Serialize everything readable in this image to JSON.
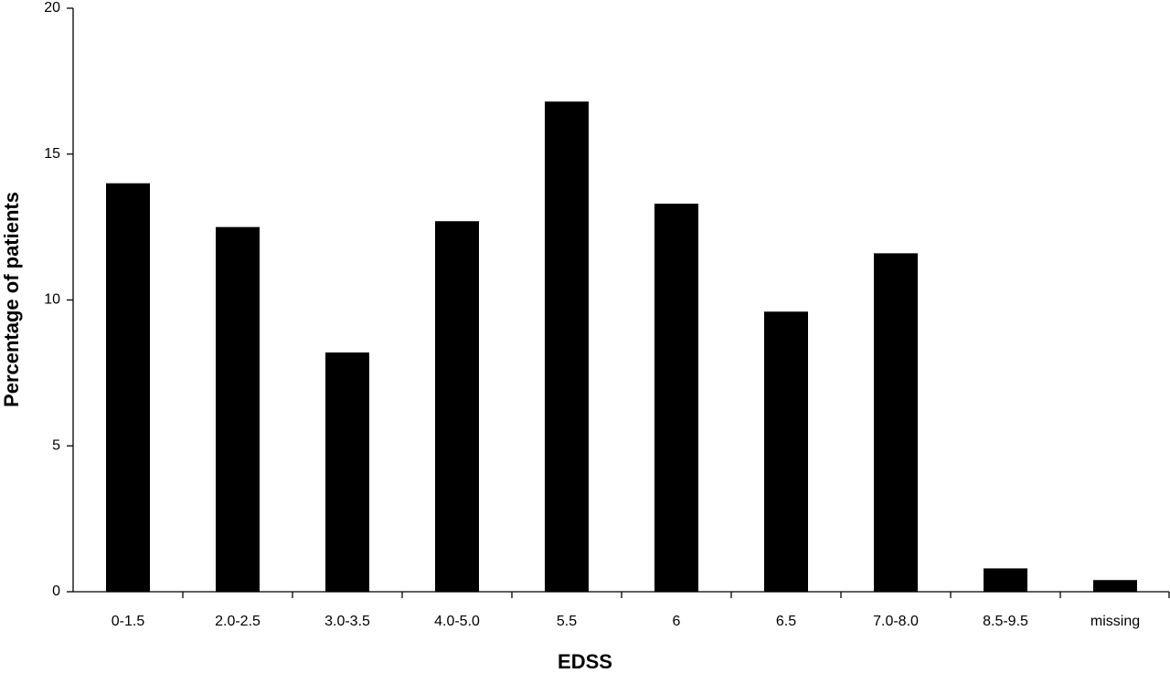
{
  "chart_data": {
    "type": "bar",
    "x_label": "EDSS",
    "y_label": "Percentage of patients",
    "categories": [
      "0-1.5",
      "2.0-2.5",
      "3.0-3.5",
      "4.0-5.0",
      "5.5",
      "6",
      "6.5",
      "7.0-8.0",
      "8.5-9.5",
      "missing"
    ],
    "values": [
      14,
      12.5,
      8.2,
      12.7,
      16.8,
      13.3,
      9.6,
      11.6,
      0.8,
      0.4
    ],
    "color": "#000000",
    "ylim": [
      0,
      20
    ],
    "yticks": [
      0,
      5,
      10,
      15,
      20
    ],
    "grid": false
  }
}
